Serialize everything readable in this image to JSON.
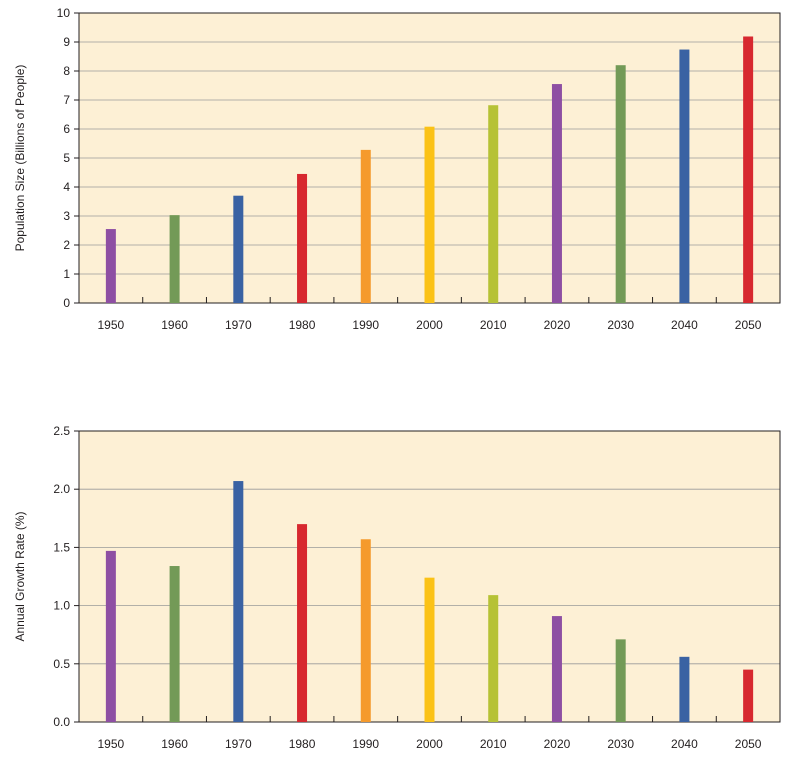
{
  "chart_data": [
    {
      "type": "bar",
      "title": "",
      "xlabel": "",
      "ylabel": "Population Size (Billions of People)",
      "categories": [
        "1950",
        "1960",
        "1970",
        "1980",
        "1990",
        "2000",
        "2010",
        "2020",
        "2030",
        "2040",
        "2050"
      ],
      "values": [
        2.55,
        3.03,
        3.7,
        4.45,
        5.28,
        6.08,
        6.82,
        7.55,
        8.2,
        8.74,
        9.19
      ],
      "ylim": [
        0,
        10
      ],
      "yticks": [
        "0",
        "1",
        "2",
        "3",
        "4",
        "5",
        "6",
        "7",
        "8",
        "9",
        "10"
      ],
      "grid": true,
      "legend": "none",
      "background": "#fdf0d5",
      "bar_colors": [
        "#8e4fa3",
        "#739a57",
        "#3a62a3",
        "#d7282f",
        "#f59a2c",
        "#fbc216",
        "#b6c235",
        "#8e4fa3",
        "#739a57",
        "#3a62a3",
        "#d7282f"
      ]
    },
    {
      "type": "bar",
      "title": "",
      "xlabel": "",
      "ylabel": "Annual Growth Rate (%)",
      "categories": [
        "1950",
        "1960",
        "1970",
        "1980",
        "1990",
        "2000",
        "2010",
        "2020",
        "2030",
        "2040",
        "2050"
      ],
      "values": [
        1.47,
        1.34,
        2.07,
        1.7,
        1.57,
        1.24,
        1.09,
        0.91,
        0.71,
        0.56,
        0.45
      ],
      "ylim": [
        0,
        2.5
      ],
      "yticks": [
        "0.0",
        "0.5",
        "1.0",
        "1.5",
        "2.0",
        "2.5"
      ],
      "grid": true,
      "legend": "none",
      "background": "#fdf0d5",
      "bar_colors": [
        "#8e4fa3",
        "#739a57",
        "#3a62a3",
        "#d7282f",
        "#f59a2c",
        "#fbc216",
        "#b6c235",
        "#8e4fa3",
        "#739a57",
        "#3a62a3",
        "#d7282f"
      ]
    }
  ]
}
